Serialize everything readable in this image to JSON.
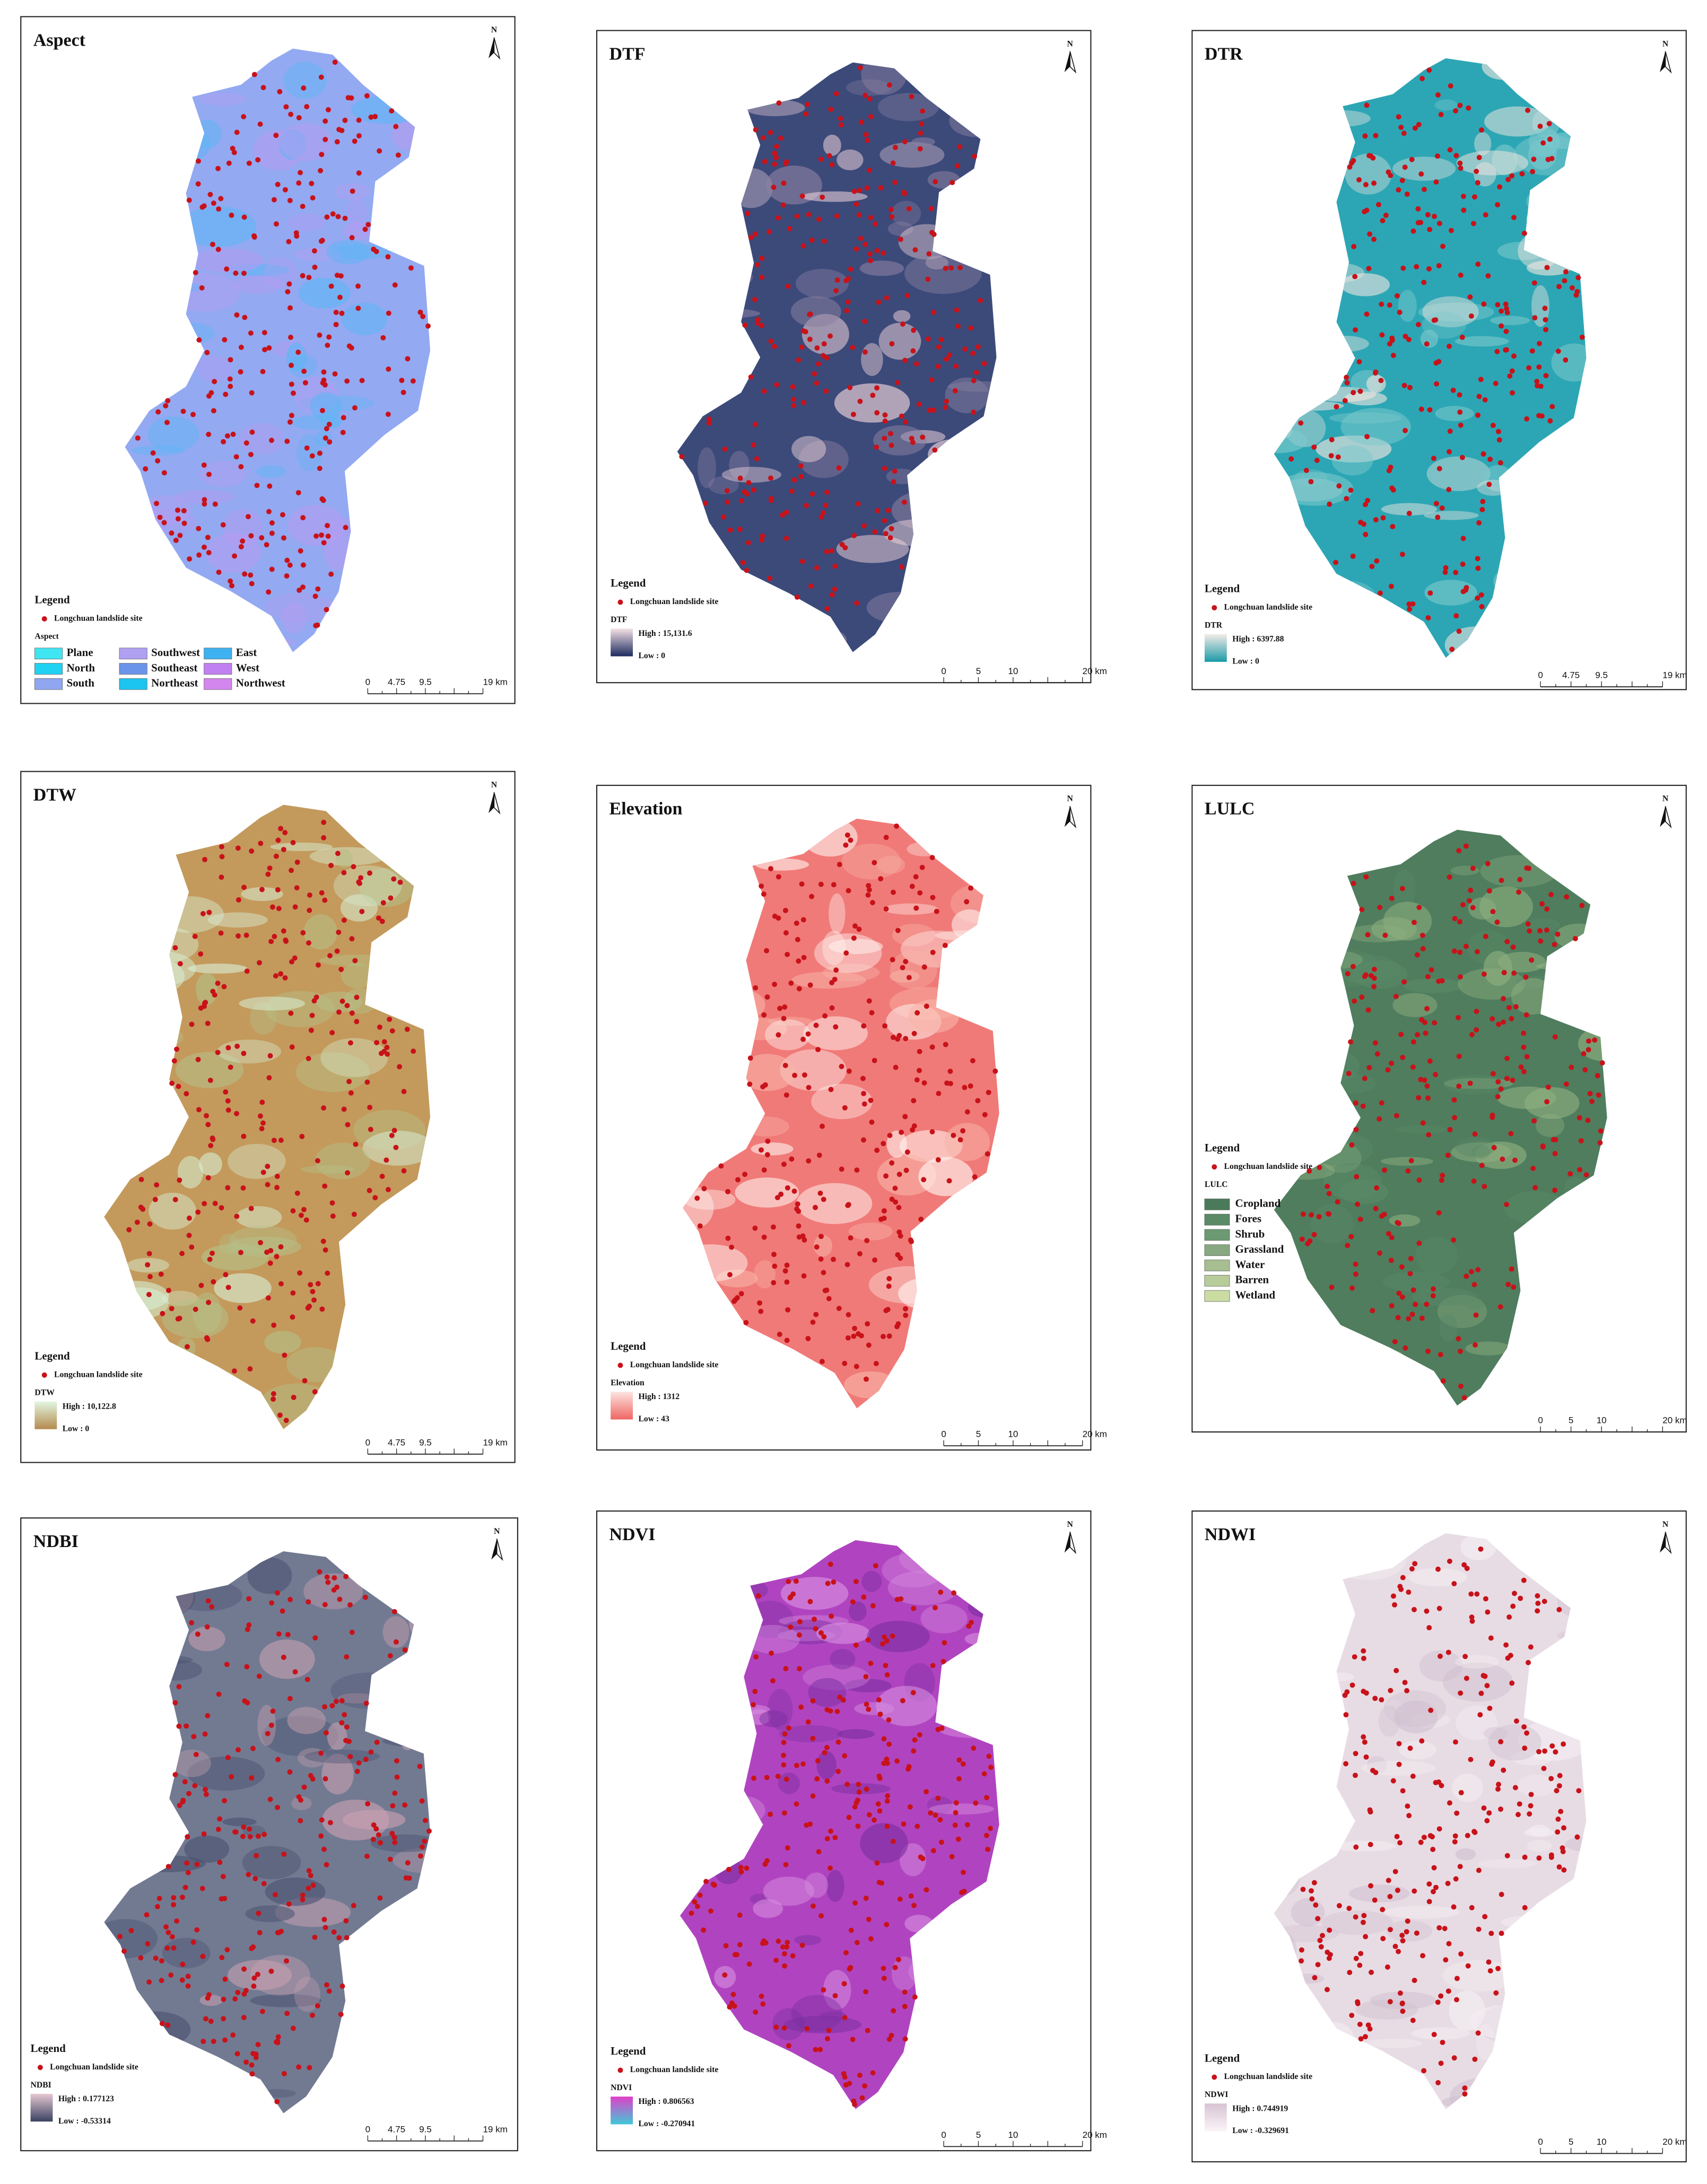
{
  "panels": [
    {
      "title": "Aspect",
      "north": "N",
      "legend": {
        "heading": "Legend",
        "site": "Longchuan landslide site",
        "title": "Aspect",
        "items": [
          "Plane",
          "North",
          "South",
          "Southwest",
          "Southeast",
          "Northeast",
          "East",
          "West",
          "Northwest"
        ]
      },
      "scale": [
        "0",
        "4.75",
        "9.5",
        "19 km"
      ]
    },
    {
      "title": "DTF",
      "north": "N",
      "legend": {
        "heading": "Legend",
        "site": "Longchuan landslide site",
        "title": "DTF",
        "high": "High : 15,131.6",
        "low": "Low : 0"
      },
      "scale": [
        "0",
        "5",
        "10",
        "20 km"
      ]
    },
    {
      "title": "DTR",
      "north": "N",
      "legend": {
        "heading": "Legend",
        "site": "Longchuan landslide site",
        "title": "DTR",
        "high": "High : 6397.88",
        "low": "Low : 0"
      },
      "scale": [
        "0",
        "4.75",
        "9.5",
        "19 km"
      ]
    },
    {
      "title": "DTW",
      "north": "N",
      "legend": {
        "heading": "Legend",
        "site": "Longchuan landslide site",
        "title": "DTW",
        "high": "High : 10,122.8",
        "low": "Low : 0"
      },
      "scale": [
        "0",
        "4.75",
        "9.5",
        "19 km"
      ]
    },
    {
      "title": "Elevation",
      "north": "N",
      "legend": {
        "heading": "Legend",
        "site": "Longchuan landslide site",
        "title": "Elevation",
        "high": "High : 1312",
        "low": "Low : 43"
      },
      "scale": [
        "0",
        "5",
        "10",
        "20 km"
      ]
    },
    {
      "title": "LULC",
      "north": "N",
      "legend": {
        "heading": "Legend",
        "site": "Longchuan landslide site",
        "title": "LULC",
        "items": [
          "Cropland",
          "Fores",
          "Shrub",
          "Grassland",
          "Water",
          "Barren",
          "Wetland"
        ]
      },
      "scale": [
        "0",
        "5",
        "10",
        "20 km"
      ]
    },
    {
      "title": "NDBI",
      "north": "N",
      "legend": {
        "heading": "Legend",
        "site": "Longchuan landslide site",
        "title": "NDBI",
        "high": "High : 0.177123",
        "low": "Low : -0.53314"
      },
      "scale": [
        "0",
        "4.75",
        "9.5",
        "19 km"
      ]
    },
    {
      "title": "NDVI",
      "north": "N",
      "legend": {
        "heading": "Legend",
        "site": "Longchuan landslide site",
        "title": "NDVI",
        "high": "High : 0.806563",
        "low": "Low : -0.270941"
      },
      "scale": [
        "0",
        "5",
        "10",
        "20 km"
      ]
    },
    {
      "title": "NDWI",
      "north": "N",
      "legend": {
        "heading": "Legend",
        "site": "Longchuan landslide site",
        "title": "NDWI",
        "high": "High : 0.744919",
        "low": "Low : -0.329691"
      },
      "scale": [
        "0",
        "5",
        "10",
        "20 km"
      ]
    }
  ]
}
